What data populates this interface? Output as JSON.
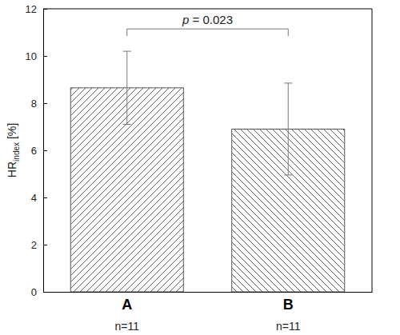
{
  "chart_data": {
    "type": "bar",
    "categories": [
      "A",
      "B"
    ],
    "n_labels": [
      "n=11",
      "n=11"
    ],
    "values": [
      8.65,
      6.9
    ],
    "errors": [
      1.55,
      1.95
    ],
    "color": "#555555",
    "y_label": {
      "main": "HR",
      "subscript": "index",
      "unit": " [%]"
    },
    "annotation": "p = 0.023",
    "ylim": [
      0,
      12
    ],
    "yticks": [
      0,
      2,
      4,
      6,
      8,
      10,
      12
    ],
    "grid": false
  }
}
